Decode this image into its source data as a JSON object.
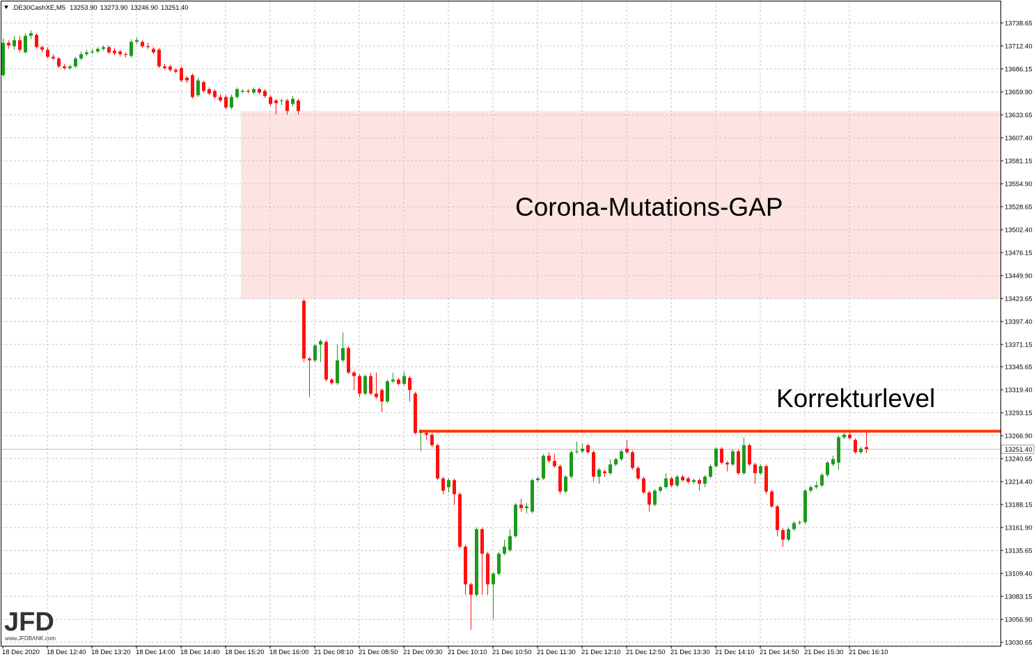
{
  "chart_data": {
    "type": "candlestick",
    "symbol": ".DE30CashXE,M5",
    "ohlc_labels": [
      "13253.90",
      "13273.90",
      "13246.90",
      "13251.40"
    ],
    "categories": [
      "18 Dec 2020",
      null,
      null,
      null,
      null,
      null,
      null,
      null,
      "18 Dec 12:40",
      null,
      null,
      null,
      null,
      null,
      null,
      null,
      "18 Dec 13:20",
      null,
      null,
      null,
      null,
      null,
      null,
      null,
      "18 Dec 14:00",
      null,
      null,
      null,
      null,
      null,
      null,
      null,
      "18 Dec 14:40",
      null,
      null,
      null,
      null,
      null,
      null,
      null,
      "18 Dec 15:20",
      null,
      null,
      null,
      null,
      null,
      null,
      null,
      "18 Dec 16:00",
      null,
      null,
      null,
      null,
      null,
      null,
      null,
      "21 Dec 08:10",
      null,
      null,
      null,
      null,
      null,
      null,
      null,
      "21 Dec 08:50",
      null,
      null,
      null,
      null,
      null,
      null,
      null,
      "21 Dec 09:30",
      null,
      null,
      null,
      null,
      null,
      null,
      null,
      "21 Dec 10:10",
      null,
      null,
      null,
      null,
      null,
      null,
      null,
      "21 Dec 10:50",
      null,
      null,
      null,
      null,
      null,
      null,
      null,
      "21 Dec 11:30",
      null,
      null,
      null,
      null,
      null,
      null,
      null,
      "21 Dec 12:10",
      null,
      null,
      null,
      null,
      null,
      null,
      null,
      "21 Dec 12:50",
      null,
      null,
      null,
      null,
      null,
      null,
      null,
      "21 Dec 13:30",
      null,
      null,
      null,
      null,
      null,
      null,
      null,
      "21 Dec 14:10",
      null,
      null,
      null,
      null,
      null,
      null,
      null,
      "21 Dec 14:50",
      null,
      null,
      null,
      null,
      null,
      null,
      null,
      "21 Dec 15:30",
      null,
      null,
      null,
      null,
      null,
      null,
      null,
      "21 Dec 16:10",
      null,
      null,
      null
    ],
    "open": [
      13679,
      13716,
      13712,
      13719,
      13705,
      13724,
      13725,
      13711,
      13708,
      13700,
      13698,
      13689,
      13687,
      13689,
      13698,
      13703,
      13705,
      13706,
      13709,
      13711,
      13707,
      13706,
      13703,
      13701,
      13717,
      13717,
      13712,
      13709,
      13708,
      13689,
      13689,
      13685,
      13687,
      13676,
      13679,
      13656,
      13671,
      13663,
      13661,
      13654,
      13654,
      13642,
      13654,
      13660,
      13661,
      13659,
      13663,
      13661,
      13654,
      13650,
      13650,
      13650,
      13646,
      13650,
      13421,
      13355,
      13353,
      13371,
      13374,
      13331,
      13327,
      13353,
      13367,
      13339,
      13335,
      13315,
      13335,
      13315,
      13319,
      13306,
      13329,
      13331,
      13326,
      13333,
      13315,
      13270,
      13270,
      13268,
      13256,
      13218,
      13208,
      13216,
      13200,
      13140,
      13097,
      13085,
      13160,
      13132,
      13097,
      13109,
      13132,
      13136,
      13152,
      13188,
      13184,
      13180,
      13216,
      13218,
      13244,
      13238,
      13232,
      13203,
      13220,
      13248,
      13249,
      13256,
      13248,
      13220,
      13226,
      13224,
      13234,
      13240,
      13252,
      13248,
      13230,
      13218,
      13202,
      13188,
      13204,
      13208,
      13218,
      13210,
      13220,
      13218,
      13214,
      13216,
      13212,
      13220,
      13232,
      13252,
      13236,
      13234,
      13249,
      13224,
      13256,
      13234,
      13224,
      13232,
      13203,
      13186,
      13159,
      13148,
      13160,
      13167,
      13168,
      13204,
      13208,
      13210,
      13222,
      13234,
      13236,
      13265,
      13268,
      13262,
      13248,
      13253.9
    ],
    "high": [
      13721,
      13719,
      13724,
      13724,
      13727,
      13730,
      13727,
      13713,
      13711,
      13703,
      13700,
      13692,
      13691,
      13700,
      13706,
      13708,
      13709,
      13711,
      13713,
      13713,
      13710,
      13708,
      13705,
      13720,
      13722,
      13719,
      13716,
      13711,
      13710,
      13692,
      13691,
      13687,
      13689,
      13678,
      13681,
      13676,
      13673,
      13665,
      13663,
      13657,
      13656,
      13657,
      13665,
      13663,
      13663,
      13665,
      13665,
      13663,
      13656,
      13652,
      13652,
      13652,
      13655,
      13652,
      13423,
      13357,
      13372,
      13377,
      13376,
      13333,
      13371,
      13385,
      13369,
      13341,
      13337,
      13337,
      13339,
      13339,
      13321,
      13331,
      13339,
      13333,
      13340,
      13335,
      13317,
      13274,
      13273,
      13270,
      13258,
      13220,
      13218,
      13218,
      13202,
      13142,
      13099,
      13162,
      13162,
      13134,
      13111,
      13134,
      13148,
      13160,
      13190,
      13195,
      13190,
      13218,
      13220,
      13246,
      13248,
      13246,
      13234,
      13222,
      13250,
      13260,
      13258,
      13258,
      13250,
      13230,
      13228,
      13240,
      13242,
      13251,
      13262,
      13250,
      13232,
      13220,
      13204,
      13206,
      13210,
      13224,
      13220,
      13222,
      13222,
      13220,
      13218,
      13218,
      13222,
      13234,
      13254,
      13254,
      13238,
      13251,
      13251,
      13265,
      13258,
      13236,
      13234,
      13234,
      13205,
      13188,
      13161,
      13162,
      13169,
      13170,
      13206,
      13210,
      13214,
      13224,
      13238,
      13244,
      13267,
      13270,
      13272,
      13264,
      13254,
      13273.9
    ],
    "low": [
      13677,
      13709,
      13708,
      13705,
      13704,
      13720,
      13709,
      13705,
      13698,
      13696,
      13687,
      13685,
      13685,
      13687,
      13696,
      13701,
      13703,
      13704,
      13707,
      13703,
      13702,
      13700,
      13699,
      13699,
      13715,
      13710,
      13709,
      13703,
      13687,
      13685,
      13683,
      13681,
      13671,
      13670,
      13652,
      13654,
      13659,
      13656,
      13652,
      13648,
      13640,
      13640,
      13652,
      13658,
      13658,
      13657,
      13657,
      13653,
      13644,
      13634,
      13645,
      13634,
      13643,
      13634,
      13351,
      13311,
      13351,
      13351,
      13329,
      13325,
      13325,
      13351,
      13337,
      13319,
      13311,
      13313,
      13313,
      13309,
      13294,
      13304,
      13327,
      13324,
      13324,
      13306,
      13268,
      13249,
      13262,
      13254,
      13216,
      13200,
      13202,
      13188,
      13138,
      13085,
      13045,
      13083,
      13085,
      13085,
      13057,
      13107,
      13130,
      13134,
      13150,
      13180,
      13178,
      13178,
      13214,
      13216,
      13236,
      13230,
      13200,
      13201,
      13218,
      13246,
      13247,
      13246,
      13214,
      13212,
      13220,
      13222,
      13232,
      13238,
      13246,
      13228,
      13216,
      13200,
      13180,
      13186,
      13202,
      13206,
      13208,
      13208,
      13214,
      13212,
      13212,
      13204,
      13208,
      13218,
      13230,
      13234,
      13226,
      13232,
      13222,
      13222,
      13232,
      13212,
      13222,
      13200,
      13184,
      13152,
      13140,
      13146,
      13158,
      13165,
      13166,
      13202,
      13206,
      13208,
      13220,
      13232,
      13228,
      13263,
      13262,
      13246,
      13246,
      13246.9
    ],
    "close": [
      13716,
      13713,
      13719,
      13708,
      13724,
      13727,
      13711,
      13708,
      13700,
      13698,
      13689,
      13687,
      13689,
      13698,
      13703,
      13705,
      13706,
      13709,
      13711,
      13705,
      13704,
      13703,
      13702,
      13717,
      13719,
      13712,
      13711,
      13705,
      13689,
      13687,
      13685,
      13683,
      13673,
      13673,
      13654,
      13673,
      13661,
      13658,
      13654,
      13650,
      13642,
      13654,
      13663,
      13661,
      13660,
      13663,
      13659,
      13655,
      13646,
      13647,
      13650,
      13638,
      13652,
      13638,
      13355,
      13353,
      13370,
      13375,
      13331,
      13327,
      13353,
      13367,
      13339,
      13335,
      13315,
      13335,
      13315,
      13311,
      13306,
      13329,
      13331,
      13326,
      13335,
      13319,
      13270,
      13272,
      13268,
      13256,
      13218,
      13204,
      13216,
      13200,
      13140,
      13097,
      13085,
      13160,
      13132,
      13097,
      13109,
      13132,
      13140,
      13152,
      13188,
      13184,
      13186,
      13216,
      13218,
      13244,
      13238,
      13232,
      13203,
      13220,
      13248,
      13249,
      13252,
      13248,
      13220,
      13228,
      13224,
      13234,
      13240,
      13249,
      13248,
      13230,
      13218,
      13202,
      13188,
      13204,
      13208,
      13218,
      13210,
      13220,
      13216,
      13214,
      13216,
      13212,
      13220,
      13232,
      13252,
      13236,
      13234,
      13249,
      13224,
      13256,
      13234,
      13224,
      13232,
      13203,
      13186,
      13159,
      13148,
      13160,
      13167,
      13168,
      13204,
      13208,
      13210,
      13222,
      13236,
      13240,
      13265,
      13268,
      13264,
      13248,
      13252,
      13251.4
    ],
    "up_color": "#1c9a1c",
    "down_color": "#ff1010",
    "ylim": [
      13026.7,
      13763.3
    ],
    "yticks": [
      13738.65,
      {
        "value": 13712.4,
        "label": "13712.40"
      },
      13686.15,
      {
        "value": 13659.9,
        "label": "13659.90"
      },
      13633.65,
      {
        "value": 13607.4,
        "label": "13607.40"
      },
      13581.15,
      {
        "value": 13554.9,
        "label": "13554.90"
      },
      13528.65,
      {
        "value": 13502.4,
        "label": "13502.40"
      },
      13476.15,
      {
        "value": 13449.9,
        "label": "13449.90"
      },
      13423.65,
      {
        "value": 13397.4,
        "label": "13397.40"
      },
      13371.15,
      13345.65,
      {
        "value": 13319.4,
        "label": "13319.40"
      },
      13293.15,
      {
        "value": 13266.9,
        "label": "13266.90"
      },
      13240.65,
      {
        "value": 13214.4,
        "label": "13214.40"
      },
      13188.15,
      {
        "value": 13161.9,
        "label": "13161.90"
      },
      13135.65,
      {
        "value": 13109.4,
        "label": "13109.40"
      },
      13083.15,
      {
        "value": 13056.9,
        "label": "13056.90"
      },
      13030.65
    ],
    "grid": true,
    "last_price": {
      "value": 13251.4,
      "label": "13251.40"
    },
    "annotations": [
      {
        "text": "Corona-Mutations-GAP",
        "y_range": [
          13423,
          13638
        ],
        "color": "#fde4e2"
      },
      {
        "text": "Korrekturlevel",
        "y": 13272,
        "color": "#ff3300"
      }
    ],
    "logo": {
      "text": "JFD",
      "url": "www.JFDBANK.com"
    }
  }
}
